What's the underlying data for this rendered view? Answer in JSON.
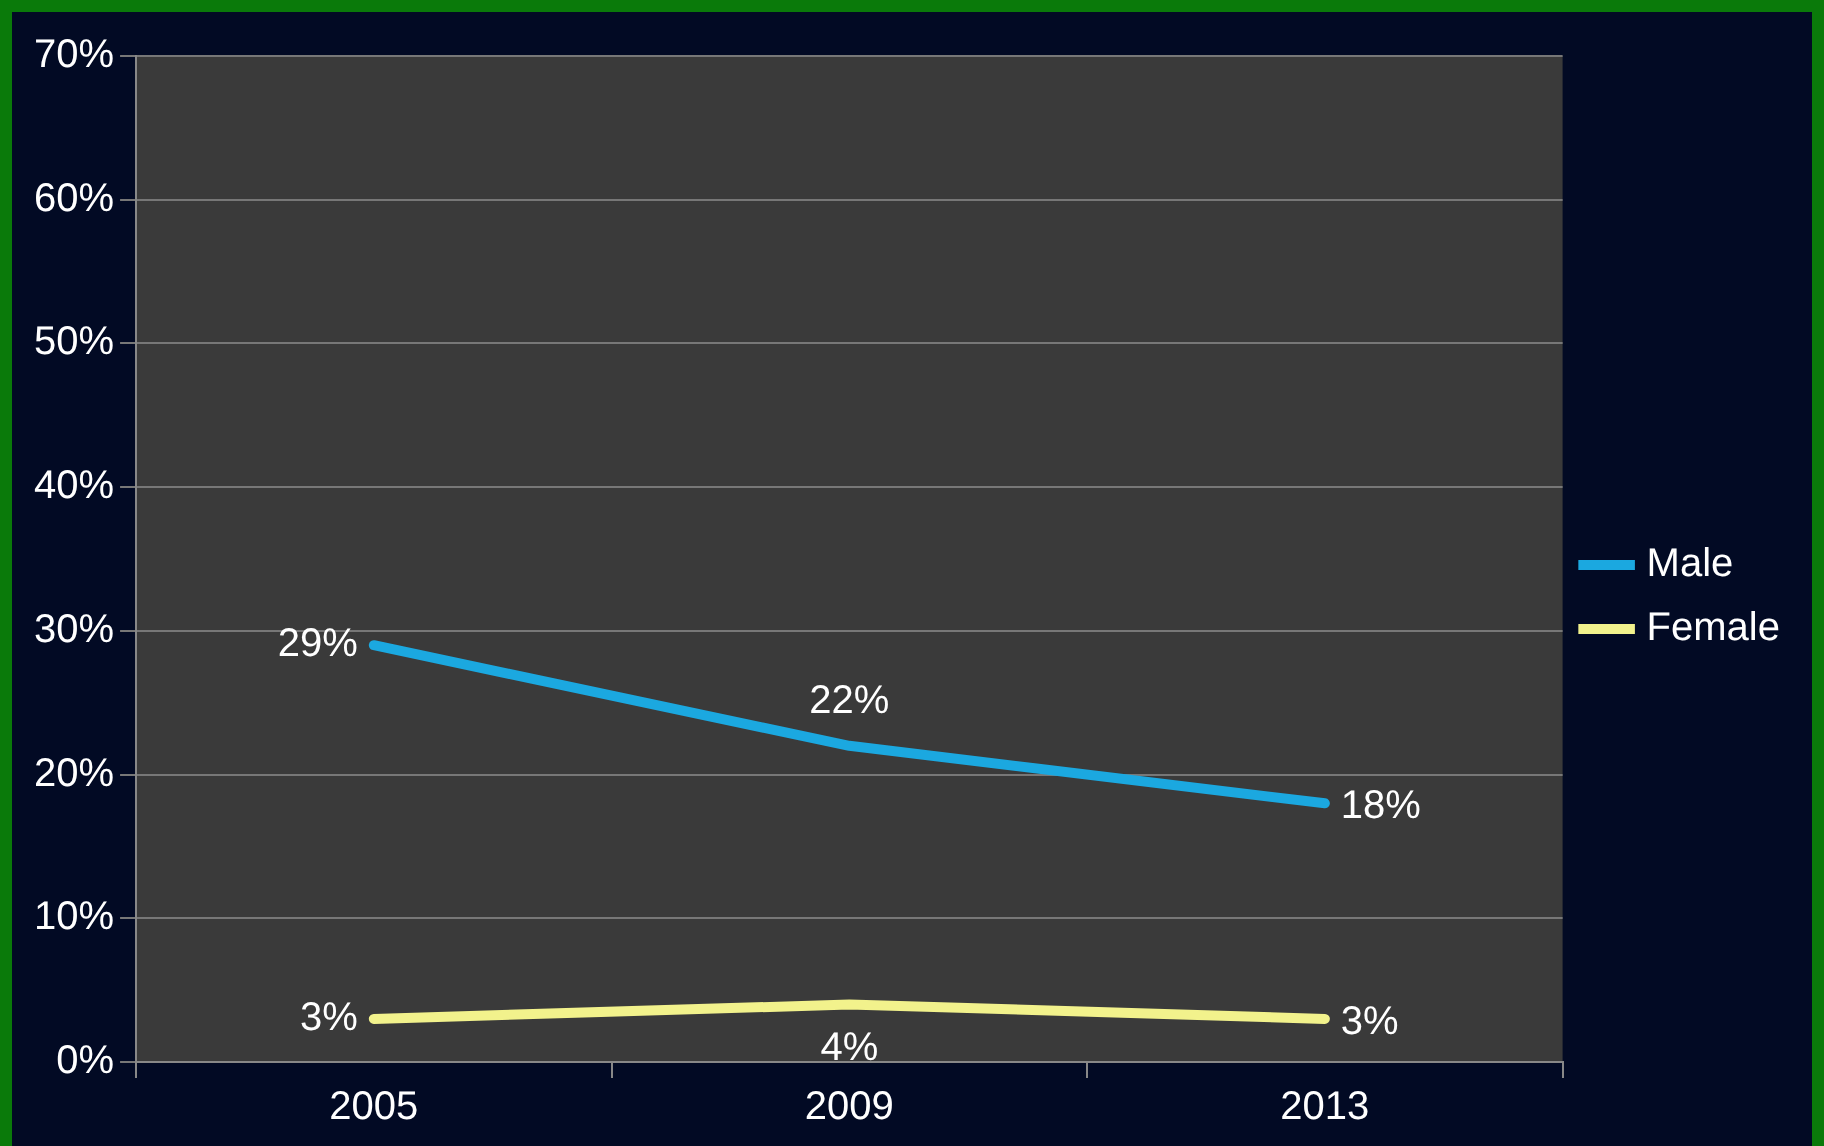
{
  "chart_data": {
    "type": "line",
    "categories": [
      "2005",
      "2009",
      "2013"
    ],
    "series": [
      {
        "name": "Male",
        "color": "#1ba8e0",
        "values": [
          29,
          22,
          18
        ],
        "value_labels": [
          "29%",
          "22%",
          "18%"
        ]
      },
      {
        "name": "Female",
        "color": "#f2f28c",
        "values": [
          3,
          4,
          3
        ],
        "value_labels": [
          "3%",
          "4%",
          "3%"
        ]
      }
    ],
    "ylim": [
      0,
      70
    ],
    "yticks": [
      {
        "value": 0,
        "label": "0%"
      },
      {
        "value": 10,
        "label": "10%"
      },
      {
        "value": 20,
        "label": "20%"
      },
      {
        "value": 30,
        "label": "30%"
      },
      {
        "value": 40,
        "label": "40%"
      },
      {
        "value": 50,
        "label": "50%"
      },
      {
        "value": 60,
        "label": "60%"
      },
      {
        "value": 70,
        "label": "70%"
      }
    ],
    "grid": "y",
    "legend": "right",
    "marker": "none",
    "line_style": "solid"
  }
}
